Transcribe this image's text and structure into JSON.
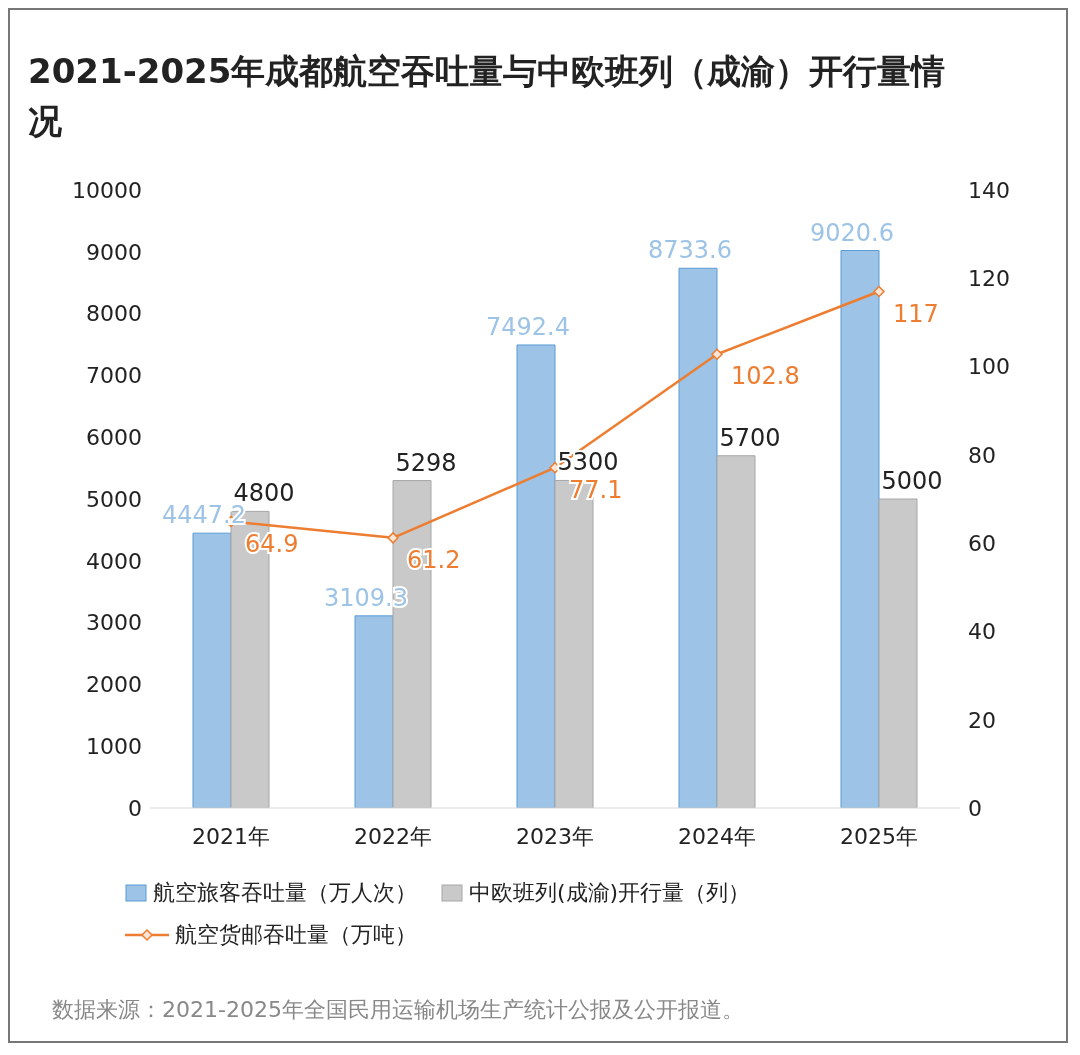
{
  "chart_data": {
    "type": "bar",
    "title": "2021-2025年成都航空吞吐量与中欧班列（成渝）开行量情况",
    "categories": [
      "2021年",
      "2022年",
      "2023年",
      "2024年",
      "2025年"
    ],
    "series": [
      {
        "name": "航空旅客吞吐量（万人次）",
        "color": "#9dc3e6",
        "values": [
          4447.2,
          3109.3,
          7492.4,
          8733.6,
          9020.6
        ]
      },
      {
        "name": "中欧班列(成渝)开行量（列）",
        "color": "#c9c9c9",
        "values": [
          4800,
          5298,
          5300,
          5700,
          5000
        ]
      },
      {
        "name": "航空货邮吞吐量（万吨）",
        "type": "line",
        "axis": "y2",
        "color": "#ed7d31",
        "marker": "diamond",
        "line_style": "solid",
        "values": [
          64.9,
          61.2,
          77.1,
          102.8,
          117
        ]
      }
    ],
    "ylim": [
      0,
      10000
    ],
    "yticks": [
      0,
      1000,
      2000,
      3000,
      4000,
      5000,
      6000,
      7000,
      8000,
      9000,
      10000
    ],
    "y2lim": [
      0,
      140
    ],
    "y2ticks": [
      0,
      20,
      40,
      60,
      80,
      100,
      120,
      140
    ],
    "grid": false,
    "legend": "bottom",
    "data_labels": true,
    "annotations": [
      "数据来源：2021-2025年全国民用运输机场生产统计公报及公开报道。"
    ]
  }
}
